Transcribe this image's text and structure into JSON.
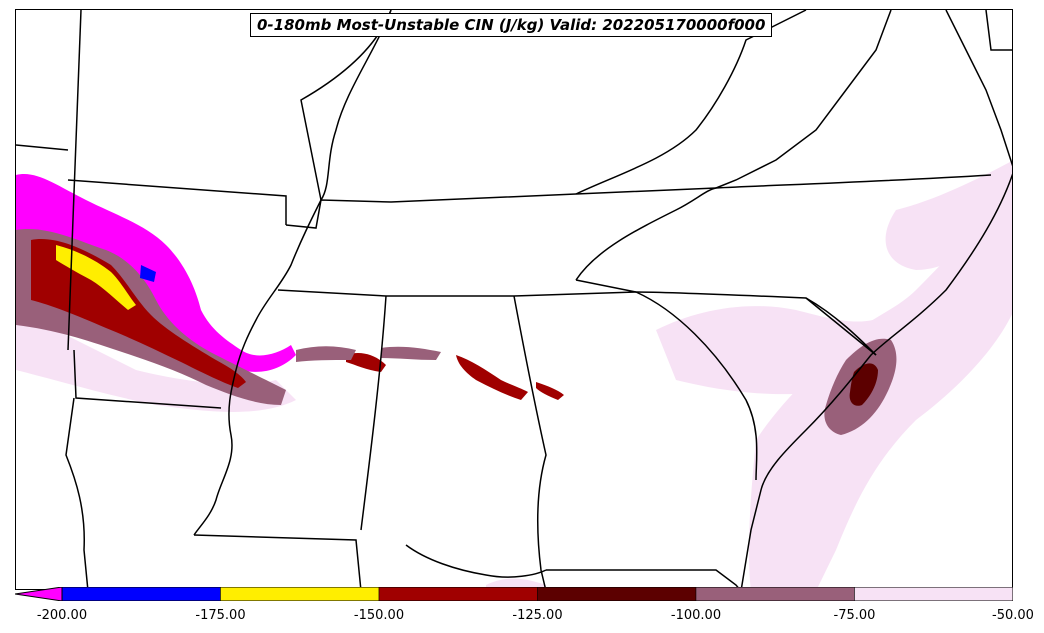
{
  "title": "0-180mb Most-Unstable CIN (J/kg) Valid: 202205170000f000",
  "colorbar": {
    "levels": [
      -200,
      -175,
      -150,
      -125,
      -100,
      -75,
      -50
    ],
    "tick_labels": [
      "-200.00",
      "-175.00",
      "-150.00",
      "-125.00",
      "-100.00",
      "-75.00",
      "-50.00"
    ],
    "under_color": "#ff00ff",
    "colors": [
      "#0000ff",
      "#ffee00",
      "#a00000",
      "#5c0000",
      "#99607a",
      "#f7e2f5"
    ]
  }
}
